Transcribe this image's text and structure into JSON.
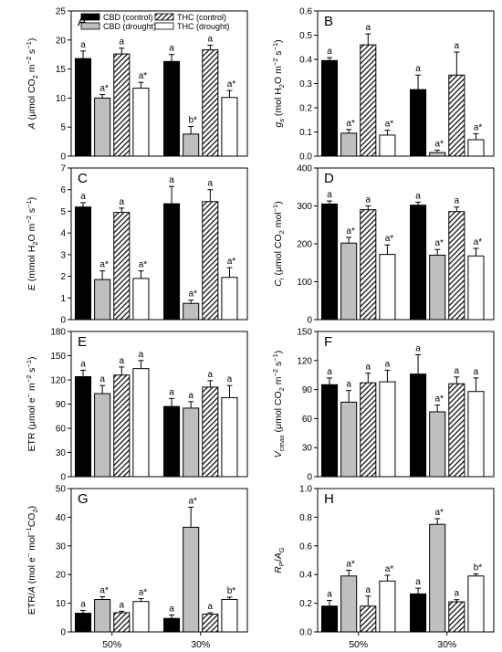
{
  "legend": [
    {
      "key": "cbd_control",
      "label": "CBD (control)",
      "fill": "#000000"
    },
    {
      "key": "cbd_drought",
      "label": "CBD (drought)",
      "fill": "#bfbfbf"
    },
    {
      "key": "thc_control",
      "label": "THC (control)",
      "fill": "hatch"
    },
    {
      "key": "thc_drought",
      "label": "THC (drought)",
      "fill": "#ffffff"
    }
  ],
  "chart_data": [
    {
      "type": "bar",
      "letter": "A",
      "ylabel": "A (μmol CO₂ m⁻² s⁻¹)",
      "ylim": [
        0,
        25
      ],
      "yticks": [
        0,
        5,
        10,
        15,
        20,
        25
      ],
      "categories": [
        "50%",
        "30%"
      ],
      "show_xlabels": false,
      "series": [
        {
          "key": "cbd_control",
          "values": [
            16.8,
            16.3
          ],
          "errors": [
            1.3,
            1.2
          ],
          "labels": [
            "a",
            "a"
          ]
        },
        {
          "key": "cbd_drought",
          "values": [
            10.0,
            3.8
          ],
          "errors": [
            0.6,
            1.3
          ],
          "labels": [
            "a*",
            "b*"
          ]
        },
        {
          "key": "thc_control",
          "values": [
            17.6,
            18.3
          ],
          "errors": [
            1.0,
            0.8
          ],
          "labels": [
            "a",
            "a"
          ]
        },
        {
          "key": "thc_drought",
          "values": [
            11.7,
            10.1
          ],
          "errors": [
            1.0,
            1.2
          ],
          "labels": [
            "a*",
            "a*"
          ]
        }
      ]
    },
    {
      "type": "bar",
      "letter": "B",
      "ylabel": "gs (mol H₂O m⁻² s⁻¹)",
      "ylim": [
        0,
        0.6
      ],
      "yticks": [
        0.0,
        0.1,
        0.2,
        0.3,
        0.4,
        0.5,
        0.6
      ],
      "categories": [
        "50%",
        "30%"
      ],
      "show_xlabels": false,
      "series": [
        {
          "key": "cbd_control",
          "values": [
            0.395,
            0.275
          ],
          "errors": [
            0.012,
            0.06
          ],
          "labels": [
            "a",
            "a"
          ]
        },
        {
          "key": "cbd_drought",
          "values": [
            0.095,
            0.015
          ],
          "errors": [
            0.015,
            0.01
          ],
          "labels": [
            "a*",
            "a*"
          ]
        },
        {
          "key": "thc_control",
          "values": [
            0.46,
            0.335
          ],
          "errors": [
            0.045,
            0.095
          ],
          "labels": [
            "a",
            "a"
          ]
        },
        {
          "key": "thc_drought",
          "values": [
            0.087,
            0.068
          ],
          "errors": [
            0.02,
            0.025
          ],
          "labels": [
            "a*",
            "a*"
          ]
        }
      ]
    },
    {
      "type": "bar",
      "letter": "C",
      "ylabel": "E (mmol H₂O m⁻² s⁻¹)",
      "ylim": [
        0,
        7
      ],
      "yticks": [
        0,
        1,
        2,
        3,
        4,
        5,
        6,
        7
      ],
      "categories": [
        "50%",
        "30%"
      ],
      "show_xlabels": false,
      "series": [
        {
          "key": "cbd_control",
          "values": [
            5.2,
            5.35
          ],
          "errors": [
            0.2,
            0.8
          ],
          "labels": [
            "a",
            "a"
          ]
        },
        {
          "key": "cbd_drought",
          "values": [
            1.85,
            0.75
          ],
          "errors": [
            0.4,
            0.15
          ],
          "labels": [
            "a*",
            "a*"
          ]
        },
        {
          "key": "thc_control",
          "values": [
            4.95,
            5.45
          ],
          "errors": [
            0.2,
            0.55
          ],
          "labels": [
            "a",
            "a"
          ]
        },
        {
          "key": "thc_drought",
          "values": [
            1.9,
            1.95
          ],
          "errors": [
            0.35,
            0.45
          ],
          "labels": [
            "a*",
            "a*"
          ]
        }
      ]
    },
    {
      "type": "bar",
      "letter": "D",
      "ylabel": "Ci (μmol CO₂ mol⁻¹)",
      "ylim": [
        0,
        400
      ],
      "yticks": [
        0,
        100,
        200,
        300,
        400
      ],
      "categories": [
        "50%",
        "30%"
      ],
      "show_xlabels": false,
      "series": [
        {
          "key": "cbd_control",
          "values": [
            305,
            302
          ],
          "errors": [
            8,
            8
          ],
          "labels": [
            "a",
            "a"
          ]
        },
        {
          "key": "cbd_drought",
          "values": [
            202,
            170
          ],
          "errors": [
            15,
            15
          ],
          "labels": [
            "a*",
            "a*"
          ]
        },
        {
          "key": "thc_control",
          "values": [
            290,
            285
          ],
          "errors": [
            10,
            12
          ],
          "labels": [
            "a",
            "a"
          ]
        },
        {
          "key": "thc_drought",
          "values": [
            172,
            168
          ],
          "errors": [
            25,
            20
          ],
          "labels": [
            "a*",
            "a*"
          ]
        }
      ]
    },
    {
      "type": "bar",
      "letter": "E",
      "ylabel": "ETR (μmol e⁻ m⁻² s⁻¹)",
      "ylim": [
        0,
        180
      ],
      "yticks": [
        0,
        30,
        60,
        90,
        120,
        150,
        180
      ],
      "categories": [
        "50%",
        "30%"
      ],
      "show_xlabels": false,
      "series": [
        {
          "key": "cbd_control",
          "values": [
            124,
            87
          ],
          "errors": [
            8,
            10
          ],
          "labels": [
            "a",
            "a"
          ]
        },
        {
          "key": "cbd_drought",
          "values": [
            103,
            85
          ],
          "errors": [
            10,
            8
          ],
          "labels": [
            "a",
            "a"
          ]
        },
        {
          "key": "thc_control",
          "values": [
            126,
            111
          ],
          "errors": [
            10,
            8
          ],
          "labels": [
            "a",
            "a"
          ]
        },
        {
          "key": "thc_drought",
          "values": [
            134,
            98
          ],
          "errors": [
            10,
            15
          ],
          "labels": [
            "a",
            "a"
          ]
        }
      ]
    },
    {
      "type": "bar",
      "letter": "F",
      "ylabel": "Vcmax (μmol CO₂ m⁻² s⁻¹)",
      "ylim": [
        0,
        150
      ],
      "yticks": [
        0,
        30,
        60,
        90,
        120,
        150
      ],
      "categories": [
        "50%",
        "30%"
      ],
      "show_xlabels": false,
      "series": [
        {
          "key": "cbd_control",
          "values": [
            95,
            106
          ],
          "errors": [
            7,
            20
          ],
          "labels": [
            "a",
            "a"
          ]
        },
        {
          "key": "cbd_drought",
          "values": [
            77,
            67
          ],
          "errors": [
            12,
            7
          ],
          "labels": [
            "a",
            "a*"
          ]
        },
        {
          "key": "thc_control",
          "values": [
            97,
            96
          ],
          "errors": [
            10,
            7
          ],
          "labels": [
            "a",
            "a"
          ]
        },
        {
          "key": "thc_drought",
          "values": [
            98,
            88
          ],
          "errors": [
            12,
            14
          ],
          "labels": [
            "a",
            "a"
          ]
        }
      ]
    },
    {
      "type": "bar",
      "letter": "G",
      "ylabel": "ETR/A (mol e⁻ mol⁻¹ CO₂)",
      "ylim": [
        0,
        50
      ],
      "yticks": [
        0,
        10,
        20,
        30,
        40,
        50
      ],
      "categories": [
        "50%",
        "30%"
      ],
      "show_xlabels": true,
      "series": [
        {
          "key": "cbd_control",
          "values": [
            6.5,
            4.7
          ],
          "errors": [
            1.0,
            1.2
          ],
          "labels": [
            "a",
            "a"
          ]
        },
        {
          "key": "cbd_drought",
          "values": [
            11.3,
            36.5
          ],
          "errors": [
            1.0,
            7.0
          ],
          "labels": [
            "a*",
            "a*"
          ]
        },
        {
          "key": "thc_control",
          "values": [
            6.7,
            6.2
          ],
          "errors": [
            0.5,
            0.5
          ],
          "labels": [
            "a",
            "a"
          ]
        },
        {
          "key": "thc_drought",
          "values": [
            10.6,
            11.3
          ],
          "errors": [
            1.0,
            0.8
          ],
          "labels": [
            "a*",
            "b*"
          ]
        }
      ]
    },
    {
      "type": "bar",
      "letter": "H",
      "ylabel": "RP/AG",
      "ylim": [
        0,
        1.0
      ],
      "yticks": [
        0.0,
        0.2,
        0.4,
        0.6,
        0.8,
        1.0
      ],
      "categories": [
        "50%",
        "30%"
      ],
      "show_xlabels": true,
      "series": [
        {
          "key": "cbd_control",
          "values": [
            0.18,
            0.265
          ],
          "errors": [
            0.04,
            0.04
          ],
          "labels": [
            "a",
            "a"
          ]
        },
        {
          "key": "cbd_drought",
          "values": [
            0.39,
            0.75
          ],
          "errors": [
            0.04,
            0.04
          ],
          "labels": [
            "a*",
            "a*"
          ]
        },
        {
          "key": "thc_control",
          "values": [
            0.18,
            0.21
          ],
          "errors": [
            0.07,
            0.015
          ],
          "labels": [
            "a",
            "a"
          ]
        },
        {
          "key": "thc_drought",
          "values": [
            0.355,
            0.39
          ],
          "errors": [
            0.04,
            0.015
          ],
          "labels": [
            "a*",
            "b*"
          ]
        }
      ]
    }
  ]
}
